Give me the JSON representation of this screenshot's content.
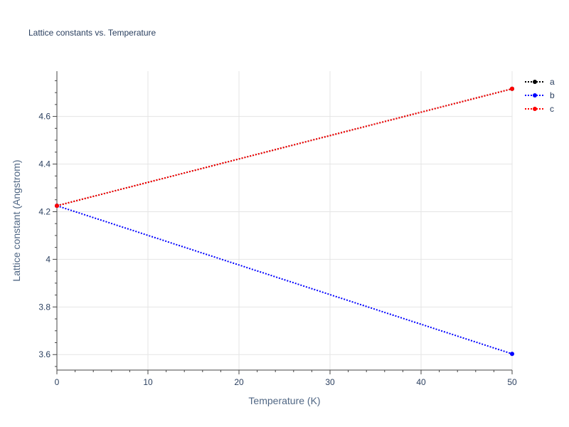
{
  "chart_data": {
    "type": "line",
    "title": "Lattice constants vs. Temperature",
    "xlabel": "Temperature (K)",
    "ylabel": "Lattice constant (Angstrom)",
    "xlim": [
      0,
      50
    ],
    "ylim": [
      3.535,
      4.79
    ],
    "xticks": [
      0,
      10,
      20,
      30,
      40,
      50
    ],
    "xtick_labels": [
      "0",
      "10",
      "20",
      "30",
      "40",
      "50"
    ],
    "yticks": [
      3.6,
      3.8,
      4.0,
      4.2,
      4.4,
      4.6
    ],
    "ytick_labels": [
      "3.6",
      "3.8",
      "4",
      "4.2",
      "4.4",
      "4.6"
    ],
    "x": [
      0,
      50
    ],
    "series": [
      {
        "name": "a",
        "values": [
          4.225,
          4.716
        ],
        "color": "#000000"
      },
      {
        "name": "b",
        "values": [
          4.225,
          3.603
        ],
        "color": "#0000ff"
      },
      {
        "name": "c",
        "values": [
          4.225,
          4.716
        ],
        "color": "#ff0000"
      }
    ],
    "line_style": "dotted",
    "markers": true,
    "grid": true,
    "legend_position": "top-right"
  }
}
